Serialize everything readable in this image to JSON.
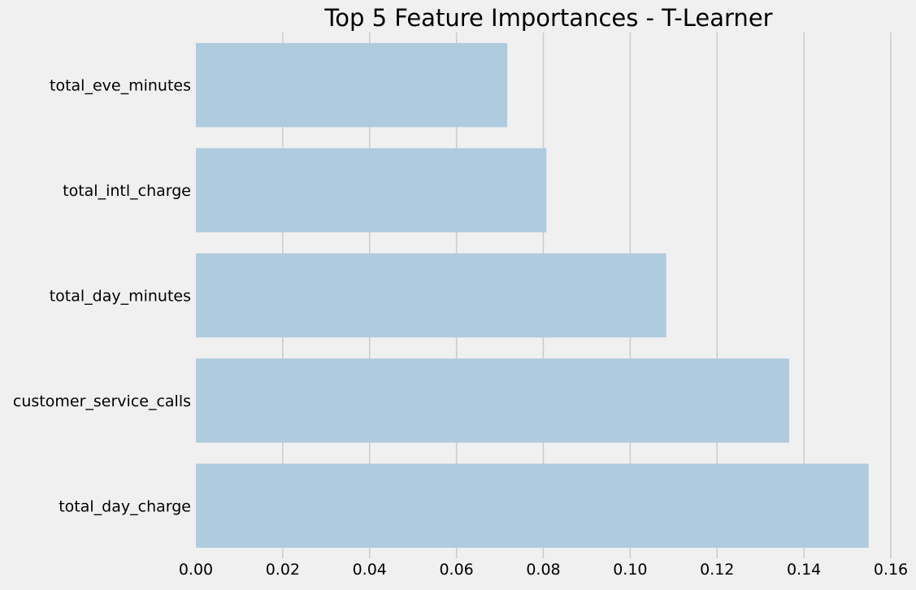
{
  "chart_data": {
    "type": "bar",
    "orientation": "horizontal",
    "title": "Top 5 Feature Importances - T-Learner",
    "xlabel": "",
    "ylabel": "",
    "categories": [
      "total_eve_minutes",
      "total_intl_charge",
      "total_day_minutes",
      "customer_service_calls",
      "total_day_charge"
    ],
    "values": [
      0.0717,
      0.0807,
      0.1083,
      0.1366,
      0.1549
    ],
    "xlim": [
      0.0,
      0.16
    ],
    "xticks": [
      "0.00",
      "0.02",
      "0.04",
      "0.06",
      "0.08",
      "0.10",
      "0.12",
      "0.14",
      "0.16"
    ],
    "grid": "vertical",
    "legend": "none"
  },
  "colors": {
    "background": "#f0f0f0",
    "bar": "#afcbde",
    "grid": "#cbcbcb",
    "text": "#000000"
  }
}
